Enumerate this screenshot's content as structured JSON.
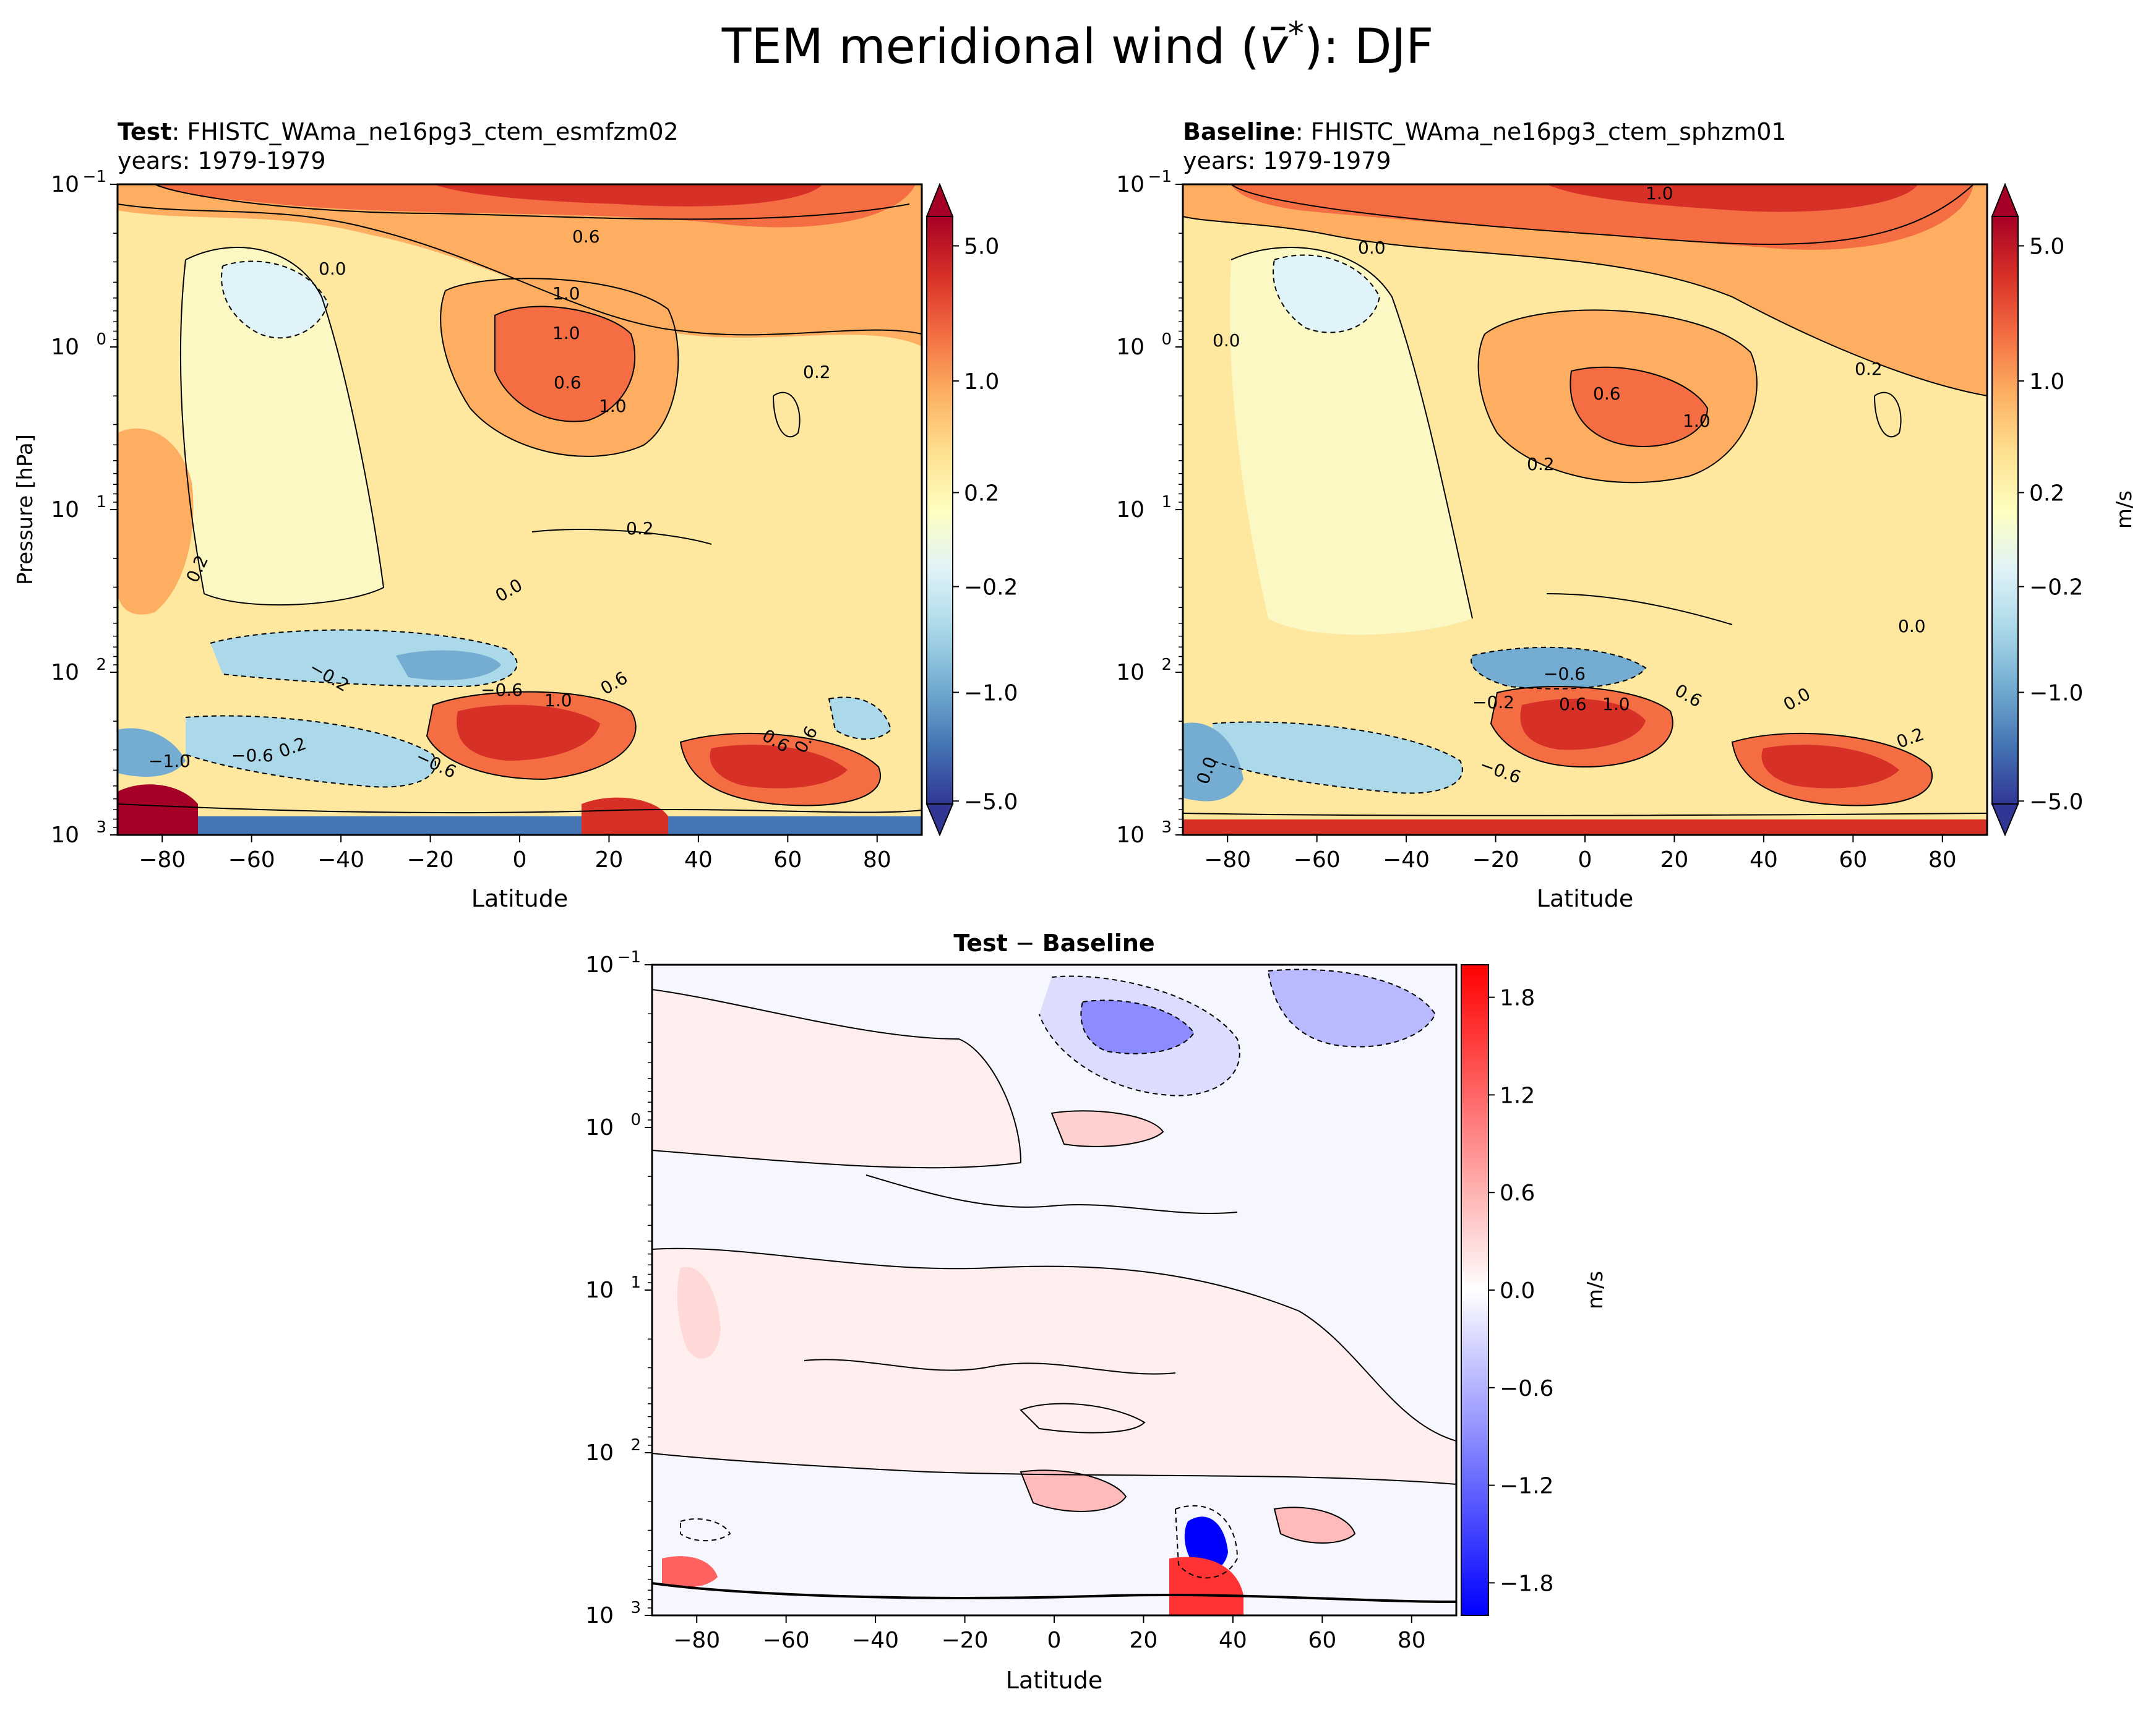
{
  "figure": {
    "title": "TEM meridional wind (v̄*): DJF",
    "title_main": "TEM meridional wind (",
    "title_symbol": "v̄",
    "title_sup": "*",
    "title_end": "): DJF"
  },
  "chart_data": [
    {
      "type": "heatmap",
      "panel": "test",
      "title_bold": "Test",
      "title_rest": ": FHISTC_WAma_ne16pg3_ctem_esmfzm02",
      "subtitle": "years: 1979-1979",
      "xlabel": "Latitude",
      "ylabel": "Pressure [hPa]",
      "xlim": [
        -90,
        90
      ],
      "xticks": [
        -80,
        -60,
        -40,
        -20,
        0,
        20,
        40,
        60,
        80
      ],
      "ylim": [
        1000,
        0.1
      ],
      "yscale": "log",
      "yticks": [
        {
          "base": "10",
          "exp": "−1"
        },
        {
          "base": "10",
          "exp": "0"
        },
        {
          "base": "10",
          "exp": "1"
        },
        {
          "base": "10",
          "exp": "2"
        },
        {
          "base": "10",
          "exp": "3"
        }
      ],
      "colormap": "RdYlBu_r",
      "colorbar": {
        "label": "",
        "ticks": [
          "5.0",
          "1.0",
          "0.2",
          "−0.2",
          "−1.0",
          "−5.0"
        ],
        "extend": "both"
      },
      "contour_labels": [
        "0.6",
        "1.0",
        "1.0",
        "0.6",
        "1.0",
        "0.0",
        "0.2",
        "0.2",
        "0.2",
        "0.0",
        "−0.2",
        "−0.6",
        "1.0",
        "0.6",
        "−1.0",
        "−0.6",
        "0.2",
        "−0.6",
        "0.6",
        "0.6"
      ]
    },
    {
      "type": "heatmap",
      "panel": "baseline",
      "title_bold": "Baseline",
      "title_rest": ": FHISTC_WAma_ne16pg3_ctem_sphzm01",
      "subtitle": "years: 1979-1979",
      "xlabel": "Latitude",
      "xlim": [
        -90,
        90
      ],
      "xticks": [
        -80,
        -60,
        -40,
        -20,
        0,
        20,
        40,
        60,
        80
      ],
      "ylim": [
        1000,
        0.1
      ],
      "yscale": "log",
      "colormap": "RdYlBu_r",
      "colorbar": {
        "label": "m/s",
        "ticks": [
          "5.0",
          "1.0",
          "0.2",
          "−0.2",
          "−1.0",
          "−5.0"
        ],
        "extend": "both"
      },
      "contour_labels": [
        "1.0",
        "0.0",
        "0.0",
        "0.6",
        "1.0",
        "0.2",
        "0.2",
        "0.0",
        "−0.6",
        "0.6",
        "1.0",
        "0.6",
        "−0.6",
        "0.0",
        "0.2",
        "0.0",
        "−0.2"
      ]
    },
    {
      "type": "heatmap",
      "panel": "difference",
      "title_bold": "Test",
      "title_mid": " − ",
      "title_bold2": "Baseline",
      "xlabel": "Latitude",
      "xlim": [
        -90,
        90
      ],
      "xticks": [
        -80,
        -60,
        -40,
        -20,
        0,
        20,
        40,
        60,
        80
      ],
      "ylim": [
        1000,
        0.1
      ],
      "yscale": "log",
      "colormap": "bwr",
      "colorbar": {
        "label": "m/s",
        "ticks": [
          "1.8",
          "1.2",
          "0.6",
          "0.0",
          "−0.6",
          "−1.2",
          "−1.8"
        ],
        "vmin": -2.0,
        "vmax": 2.0
      }
    }
  ],
  "colors": {
    "rdylbu": [
      "#313695",
      "#4575b4",
      "#74add1",
      "#abd9e9",
      "#e0f3f8",
      "#ffffbf",
      "#fee090",
      "#fdae61",
      "#f46d43",
      "#d73027",
      "#a50026"
    ],
    "bwr_neg": "#0000ff",
    "bwr_pos": "#ff0000"
  }
}
